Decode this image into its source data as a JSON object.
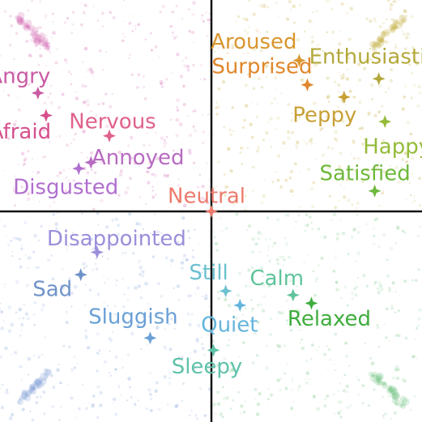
{
  "emotions": [
    {
      "label": "Aroused",
      "color": "#d9962e",
      "valence": 0.43,
      "arousal": 0.74
    },
    {
      "label": "Surprised",
      "color": "#e0872c",
      "valence": 0.47,
      "arousal": 0.62
    },
    {
      "label": "Enthusiastic",
      "color": "#b3a83a",
      "valence": 0.82,
      "arousal": 0.65
    },
    {
      "label": "Peppy",
      "color": "#c8a036",
      "valence": 0.65,
      "arousal": 0.56
    },
    {
      "label": "Happy",
      "color": "#95bb3a",
      "valence": 0.85,
      "arousal": 0.44
    },
    {
      "label": "Satisfied",
      "color": "#6eb83a",
      "valence": 0.8,
      "arousal": 0.1
    },
    {
      "label": "Angry",
      "color": "#c95aa3",
      "valence": -0.85,
      "arousal": 0.58
    },
    {
      "label": "Afraid",
      "color": "#d64f8c",
      "valence": -0.81,
      "arousal": 0.47
    },
    {
      "label": "Nervous",
      "color": "#e0618a",
      "valence": -0.5,
      "arousal": 0.37
    },
    {
      "label": "Annoyed",
      "color": "#b76bc1",
      "valence": -0.59,
      "arousal": 0.24
    },
    {
      "label": "Disgusted",
      "color": "#b06fcf",
      "valence": -0.65,
      "arousal": 0.21
    },
    {
      "label": "Neutral",
      "color": "#ec7b6c",
      "valence": 0.0,
      "arousal": 0.0
    },
    {
      "label": "Disappointed",
      "color": "#9b8fdb",
      "valence": -0.56,
      "arousal": -0.2
    },
    {
      "label": "Sad",
      "color": "#6f93c9",
      "valence": -0.64,
      "arousal": -0.31
    },
    {
      "label": "Sluggish",
      "color": "#6aa0d6",
      "valence": -0.3,
      "arousal": -0.62
    },
    {
      "label": "Still",
      "color": "#6cc0cf",
      "valence": 0.07,
      "arousal": -0.39
    },
    {
      "label": "Quiet",
      "color": "#64b5dc",
      "valence": 0.14,
      "arousal": -0.46
    },
    {
      "label": "Sleepy",
      "color": "#5fc2aa",
      "valence": 0.01,
      "arousal": -0.68
    },
    {
      "label": "Calm",
      "color": "#5fc49b",
      "valence": 0.4,
      "arousal": -0.41
    },
    {
      "label": "Relaxed",
      "color": "#3fad3e",
      "valence": 0.49,
      "arousal": -0.45
    }
  ],
  "quadrant_colors": {
    "top_left": "#d873b8",
    "top_right": "#c8b24a",
    "bottom_left": "#8aa8dc",
    "bottom_right": "#7cc98a"
  }
}
